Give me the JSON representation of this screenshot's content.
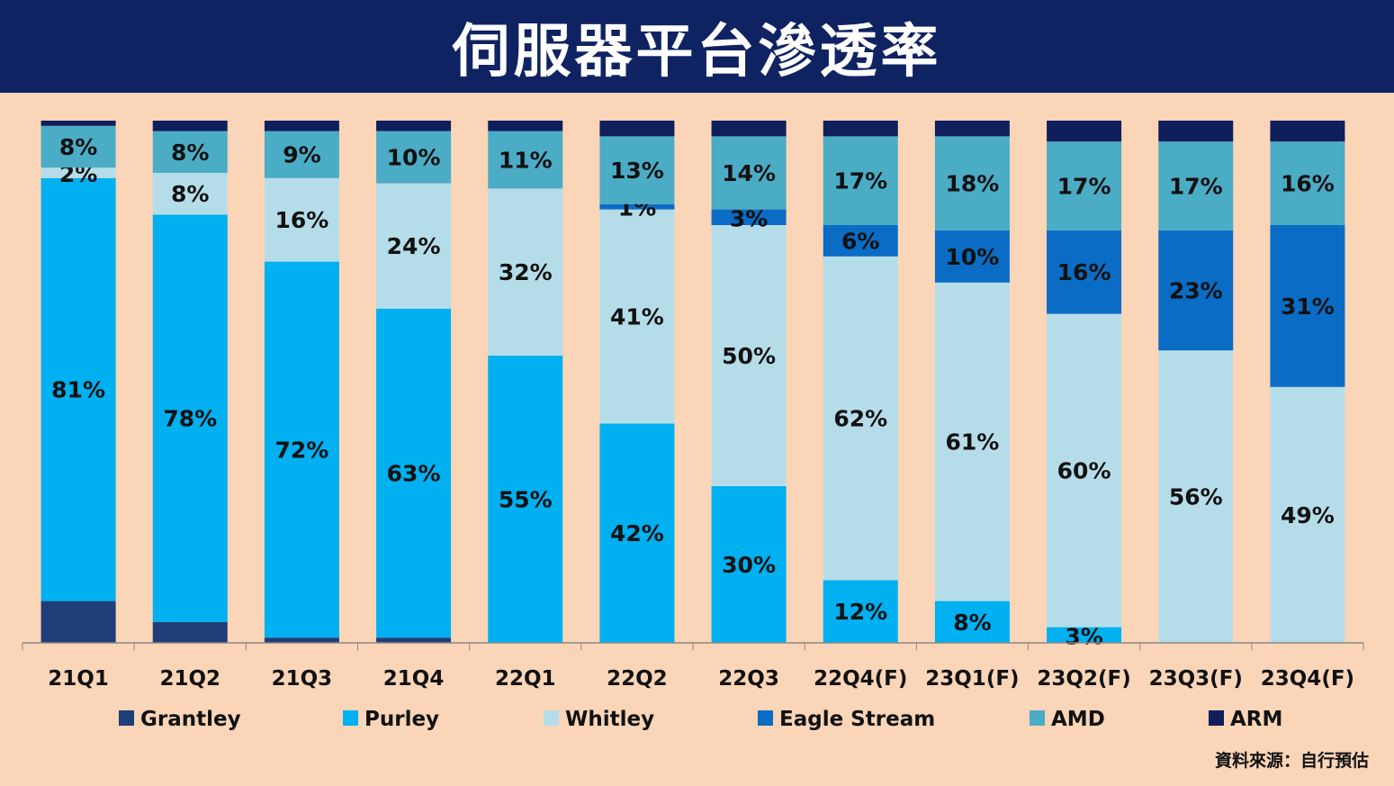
{
  "header": {
    "title": "伺服器平台滲透率"
  },
  "source_note": "資料來源：自行預估",
  "chart_data": {
    "type": "bar",
    "stacked": true,
    "categories": [
      "21Q1",
      "21Q2",
      "21Q3",
      "21Q4",
      "22Q1",
      "22Q2",
      "22Q3",
      "22Q4(F)",
      "23Q1(F)",
      "23Q2(F)",
      "23Q3(F)",
      "23Q4(F)"
    ],
    "ylim": [
      0,
      100
    ],
    "legend_position": "bottom",
    "series": [
      {
        "name": "Grantley",
        "color": "#1F3E78",
        "values": [
          8,
          4,
          1,
          1,
          0,
          0,
          0,
          0,
          0,
          0,
          0,
          0
        ]
      },
      {
        "name": "Purley",
        "color": "#00B0F0",
        "values": [
          81,
          78,
          72,
          63,
          55,
          42,
          30,
          12,
          8,
          3,
          0,
          0
        ]
      },
      {
        "name": "Whitley",
        "color": "#B5DDE9",
        "values": [
          2,
          8,
          16,
          24,
          32,
          41,
          50,
          62,
          61,
          60,
          56,
          49
        ]
      },
      {
        "name": "Eagle Stream",
        "color": "#0A6CC4",
        "values": [
          0,
          0,
          0,
          0,
          0,
          1,
          3,
          6,
          10,
          16,
          23,
          31
        ]
      },
      {
        "name": "AMD",
        "color": "#4BACC6",
        "values": [
          8,
          8,
          9,
          10,
          11,
          13,
          14,
          17,
          18,
          17,
          17,
          16
        ]
      },
      {
        "name": "ARM",
        "color": "#0F1F5C",
        "values": [
          1,
          2,
          2,
          2,
          2,
          3,
          3,
          3,
          3,
          4,
          4,
          4
        ]
      }
    ],
    "data_labels": {
      "Grantley": [
        "",
        "",
        "",
        "",
        "",
        "",
        "",
        "",
        "",
        "",
        "",
        ""
      ],
      "Purley": [
        "81%",
        "78%",
        "72%",
        "63%",
        "55%",
        "42%",
        "30%",
        "12%",
        "8%",
        "3%",
        "",
        ""
      ],
      "Whitley": [
        "2%",
        "8%",
        "16%",
        "24%",
        "32%",
        "41%",
        "50%",
        "62%",
        "61%",
        "60%",
        "56%",
        "49%"
      ],
      "Eagle Stream": [
        "",
        "",
        "",
        "",
        "",
        "1%",
        "3%",
        "6%",
        "10%",
        "16%",
        "23%",
        "31%"
      ],
      "AMD": [
        "8%",
        "8%",
        "9%",
        "10%",
        "11%",
        "13%",
        "14%",
        "17%",
        "18%",
        "17%",
        "17%",
        "16%"
      ],
      "ARM": [
        "",
        "",
        "",
        "",
        "",
        "",
        "",
        "",
        "",
        "",
        "",
        ""
      ]
    }
  }
}
